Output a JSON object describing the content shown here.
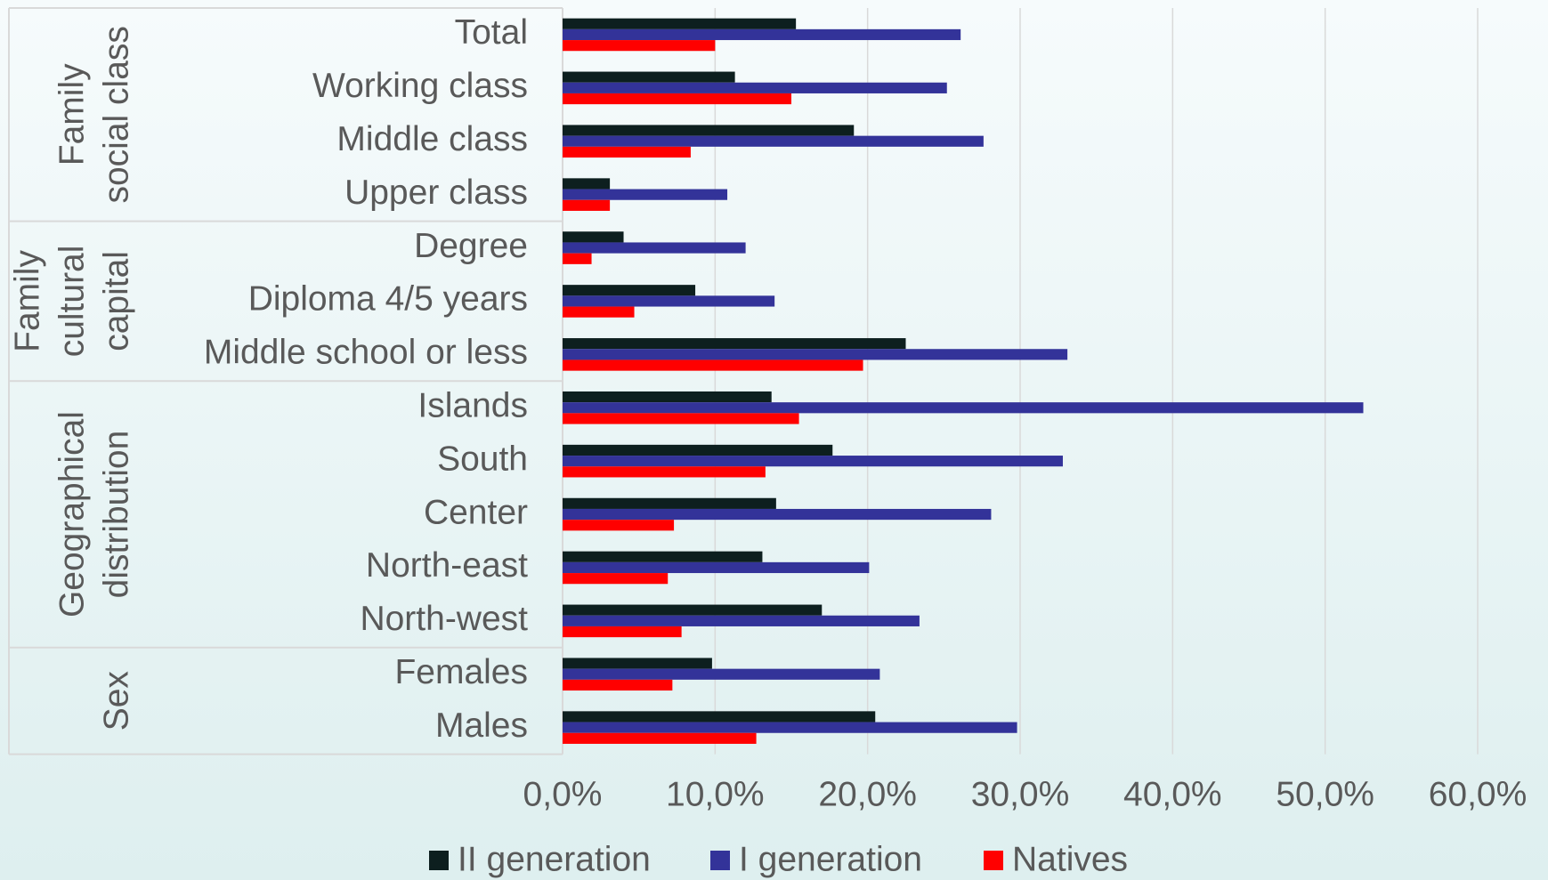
{
  "chart_data": {
    "type": "bar",
    "orientation": "horizontal",
    "categories": [
      "Total",
      "Working class",
      "Middle class",
      "Upper class",
      "Degree",
      "Diploma 4/5 years",
      "Middle school or less",
      "Islands",
      "South",
      "Center",
      "North-east",
      "North-west",
      "Females",
      "Males"
    ],
    "groups": [
      {
        "lines": [
          "Family",
          "social class"
        ],
        "start": 0,
        "end": 3
      },
      {
        "lines": [
          "Family",
          "cultural",
          "capital"
        ],
        "start": 4,
        "end": 6
      },
      {
        "lines": [
          "Geographical",
          "distribution"
        ],
        "start": 7,
        "end": 11
      },
      {
        "lines": [
          "Sex"
        ],
        "start": 12,
        "end": 13
      }
    ],
    "series": [
      {
        "name": "II generation",
        "color": "#0d1f1f",
        "values": [
          15.3,
          11.3,
          19.1,
          3.1,
          4.0,
          8.7,
          22.5,
          13.7,
          17.7,
          14.0,
          13.1,
          17.0,
          9.8,
          20.5
        ]
      },
      {
        "name": "I generation",
        "color": "#333399",
        "values": [
          26.1,
          25.2,
          27.6,
          10.8,
          12.0,
          13.9,
          33.1,
          52.5,
          32.8,
          28.1,
          20.1,
          23.4,
          20.8,
          29.8
        ]
      },
      {
        "name": "Natives",
        "color": "#ff0000",
        "values": [
          10.0,
          15.0,
          8.4,
          3.1,
          1.9,
          4.7,
          19.7,
          15.5,
          13.3,
          7.3,
          6.9,
          7.8,
          7.2,
          12.7
        ]
      }
    ],
    "xlim": [
      0,
      60
    ],
    "xticks": [
      {
        "value": 0,
        "label": "0,0%"
      },
      {
        "value": 10,
        "label": "10,0%"
      },
      {
        "value": 20,
        "label": "20,0%"
      },
      {
        "value": 30,
        "label": "30,0%"
      },
      {
        "value": 40,
        "label": "40,0%"
      },
      {
        "value": 50,
        "label": "50,0%"
      },
      {
        "value": 60,
        "label": "60,0%"
      }
    ],
    "grid": true,
    "legend": "bottom"
  }
}
